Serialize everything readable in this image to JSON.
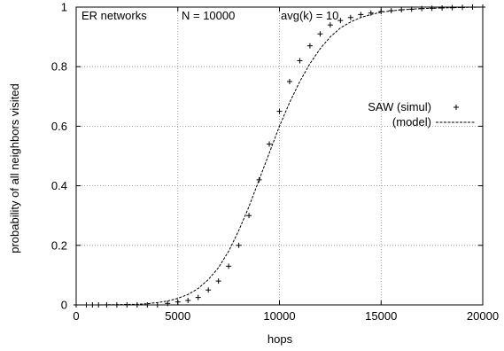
{
  "chart_data": {
    "type": "scatter",
    "title": "",
    "xlabel": "hops",
    "ylabel": "probability of all neighbors visited",
    "xlim": [
      0,
      20000
    ],
    "ylim": [
      0,
      1
    ],
    "x_ticks": [
      0,
      5000,
      10000,
      15000,
      20000
    ],
    "y_ticks": [
      0,
      0.2,
      0.4,
      0.6,
      0.8,
      1
    ],
    "grid": true,
    "legend_position": "right",
    "annotations": [
      "ER networks",
      "N = 10000",
      "avg(k) = 10"
    ],
    "series": [
      {
        "name": "SAW (simul)",
        "kind": "scatter",
        "marker": "plus",
        "color": "#000000",
        "x": [
          0,
          500,
          800,
          1100,
          1500,
          2000,
          2500,
          3000,
          3500,
          4000,
          4500,
          5000,
          5500,
          6000,
          6500,
          7000,
          7500,
          8000,
          8500,
          9000,
          9500,
          10000,
          10500,
          11000,
          11500,
          12000,
          12500,
          13000,
          13500,
          14000,
          14500,
          15000,
          15500,
          16000,
          16500,
          17000,
          17500,
          18000,
          18500,
          19000,
          19500,
          20000
        ],
        "y": [
          0,
          0,
          0,
          0,
          0,
          0,
          0,
          0,
          0,
          0,
          0.005,
          0.01,
          0.015,
          0.025,
          0.05,
          0.08,
          0.13,
          0.2,
          0.3,
          0.42,
          0.54,
          0.65,
          0.75,
          0.82,
          0.87,
          0.91,
          0.94,
          0.955,
          0.965,
          0.975,
          0.98,
          0.985,
          0.988,
          0.991,
          0.993,
          0.995,
          0.996,
          0.997,
          0.998,
          0.999,
          1.0,
          1.0
        ]
      },
      {
        "name": "(model)",
        "kind": "line",
        "style": "dashed",
        "color": "#000000",
        "x": [
          0,
          1000,
          2000,
          3000,
          3500,
          4000,
          4500,
          5000,
          5500,
          6000,
          6500,
          7000,
          7500,
          8000,
          8500,
          9000,
          9500,
          10000,
          10500,
          11000,
          11500,
          12000,
          12500,
          13000,
          13500,
          14000,
          14500,
          15000,
          16000,
          17000,
          18000,
          19000,
          20000
        ],
        "y": [
          0,
          0,
          0.001,
          0.002,
          0.004,
          0.008,
          0.013,
          0.022,
          0.035,
          0.055,
          0.085,
          0.125,
          0.18,
          0.25,
          0.33,
          0.42,
          0.51,
          0.6,
          0.68,
          0.75,
          0.81,
          0.86,
          0.9,
          0.93,
          0.95,
          0.965,
          0.975,
          0.983,
          0.991,
          0.995,
          0.997,
          0.999,
          1.0
        ]
      }
    ]
  }
}
